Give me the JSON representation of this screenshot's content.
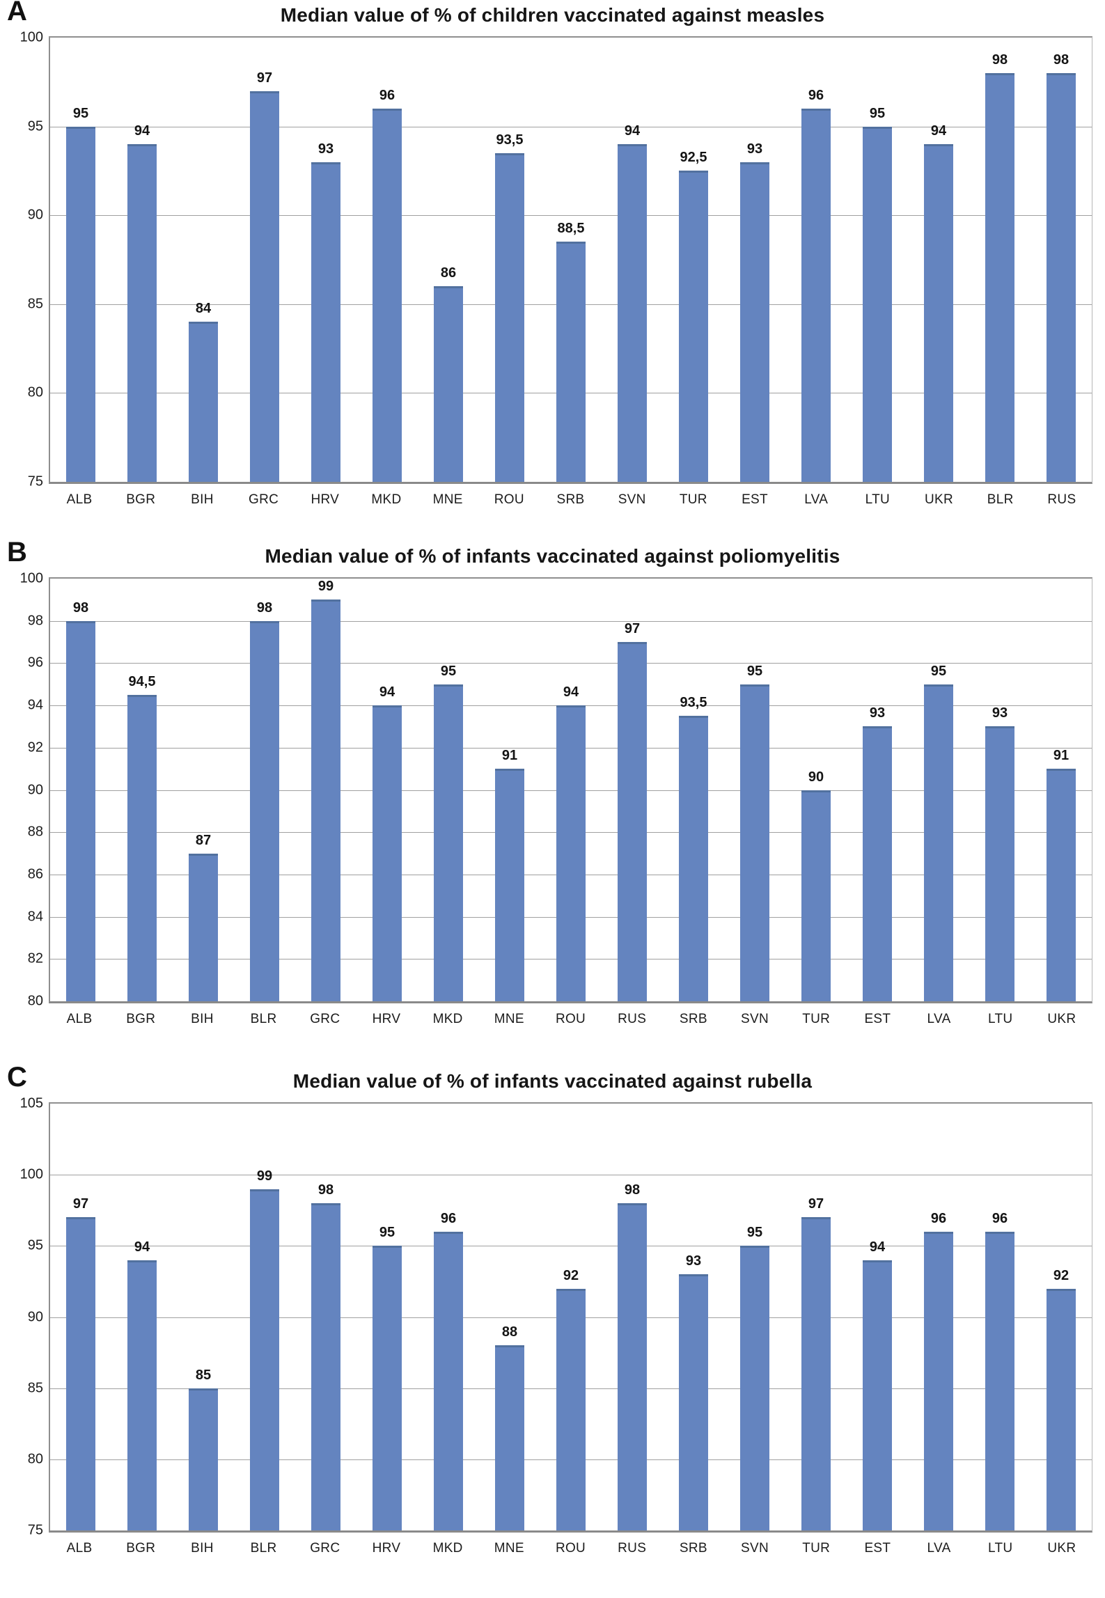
{
  "colors": {
    "bar": "#6484bf",
    "bar_cap": "#52719f",
    "grid": "#a0a0a0",
    "axis": "#8f8f8f",
    "text": "#1a1a1a",
    "background": "#ffffff"
  },
  "chart_data": [
    {
      "panel_letter": "A",
      "type": "bar",
      "title": "Median value of % of children vaccinated against measles",
      "categories": [
        "ALB",
        "BGR",
        "BIH",
        "GRC",
        "HRV",
        "MKD",
        "MNE",
        "ROU",
        "SRB",
        "SVN",
        "TUR",
        "EST",
        "LVA",
        "LTU",
        "UKR",
        "BLR",
        "RUS"
      ],
      "values": [
        95,
        94,
        84,
        97,
        93,
        96,
        86,
        93.5,
        88.5,
        94,
        92.5,
        93,
        96,
        95,
        94,
        98,
        98
      ],
      "value_labels": [
        "95",
        "94",
        "84",
        "97",
        "93",
        "96",
        "86",
        "93,5",
        "88,5",
        "94",
        "92,5",
        "93",
        "96",
        "95",
        "94",
        "98",
        "98"
      ],
      "xlabel": "",
      "ylabel": "",
      "ylim": [
        75,
        100
      ],
      "ytick_step": 5,
      "ytick_labels": [
        "75",
        "80",
        "85",
        "90",
        "95",
        "100"
      ],
      "grid": true,
      "legend": null
    },
    {
      "panel_letter": "B",
      "type": "bar",
      "title": "Median value of % of infants vaccinated against poliomyelitis",
      "categories": [
        "ALB",
        "BGR",
        "BIH",
        "BLR",
        "GRC",
        "HRV",
        "MKD",
        "MNE",
        "ROU",
        "RUS",
        "SRB",
        "SVN",
        "TUR",
        "EST",
        "LVA",
        "LTU",
        "UKR"
      ],
      "values": [
        98,
        94.5,
        87,
        98,
        99,
        94,
        95,
        91,
        94,
        97,
        93.5,
        95,
        90,
        93,
        95,
        93,
        91
      ],
      "value_labels": [
        "98",
        "94,5",
        "87",
        "98",
        "99",
        "94",
        "95",
        "91",
        "94",
        "97",
        "93,5",
        "95",
        "90",
        "93",
        "95",
        "93",
        "91"
      ],
      "xlabel": "",
      "ylabel": "",
      "ylim": [
        80,
        100
      ],
      "ytick_step": 2,
      "ytick_labels": [
        "80",
        "82",
        "84",
        "86",
        "88",
        "90",
        "92",
        "94",
        "96",
        "98",
        "100"
      ],
      "grid": true,
      "legend": null
    },
    {
      "panel_letter": "C",
      "type": "bar",
      "title": "Median value of % of infants vaccinated against rubella",
      "categories": [
        "ALB",
        "BGR",
        "BIH",
        "BLR",
        "GRC",
        "HRV",
        "MKD",
        "MNE",
        "ROU",
        "RUS",
        "SRB",
        "SVN",
        "TUR",
        "EST",
        "LVA",
        "LTU",
        "UKR"
      ],
      "values": [
        97,
        94,
        85,
        99,
        98,
        95,
        96,
        88,
        92,
        98,
        93,
        95,
        97,
        94,
        96,
        96,
        92
      ],
      "value_labels": [
        "97",
        "94",
        "85",
        "99",
        "98",
        "95",
        "96",
        "88",
        "92",
        "98",
        "93",
        "95",
        "97",
        "94",
        "96",
        "96",
        "92"
      ],
      "xlabel": "",
      "ylabel": "",
      "ylim": [
        75,
        105
      ],
      "ytick_step": 5,
      "ytick_labels": [
        "75",
        "80",
        "85",
        "90",
        "95",
        "100",
        "105"
      ],
      "grid": true,
      "legend": null
    }
  ]
}
